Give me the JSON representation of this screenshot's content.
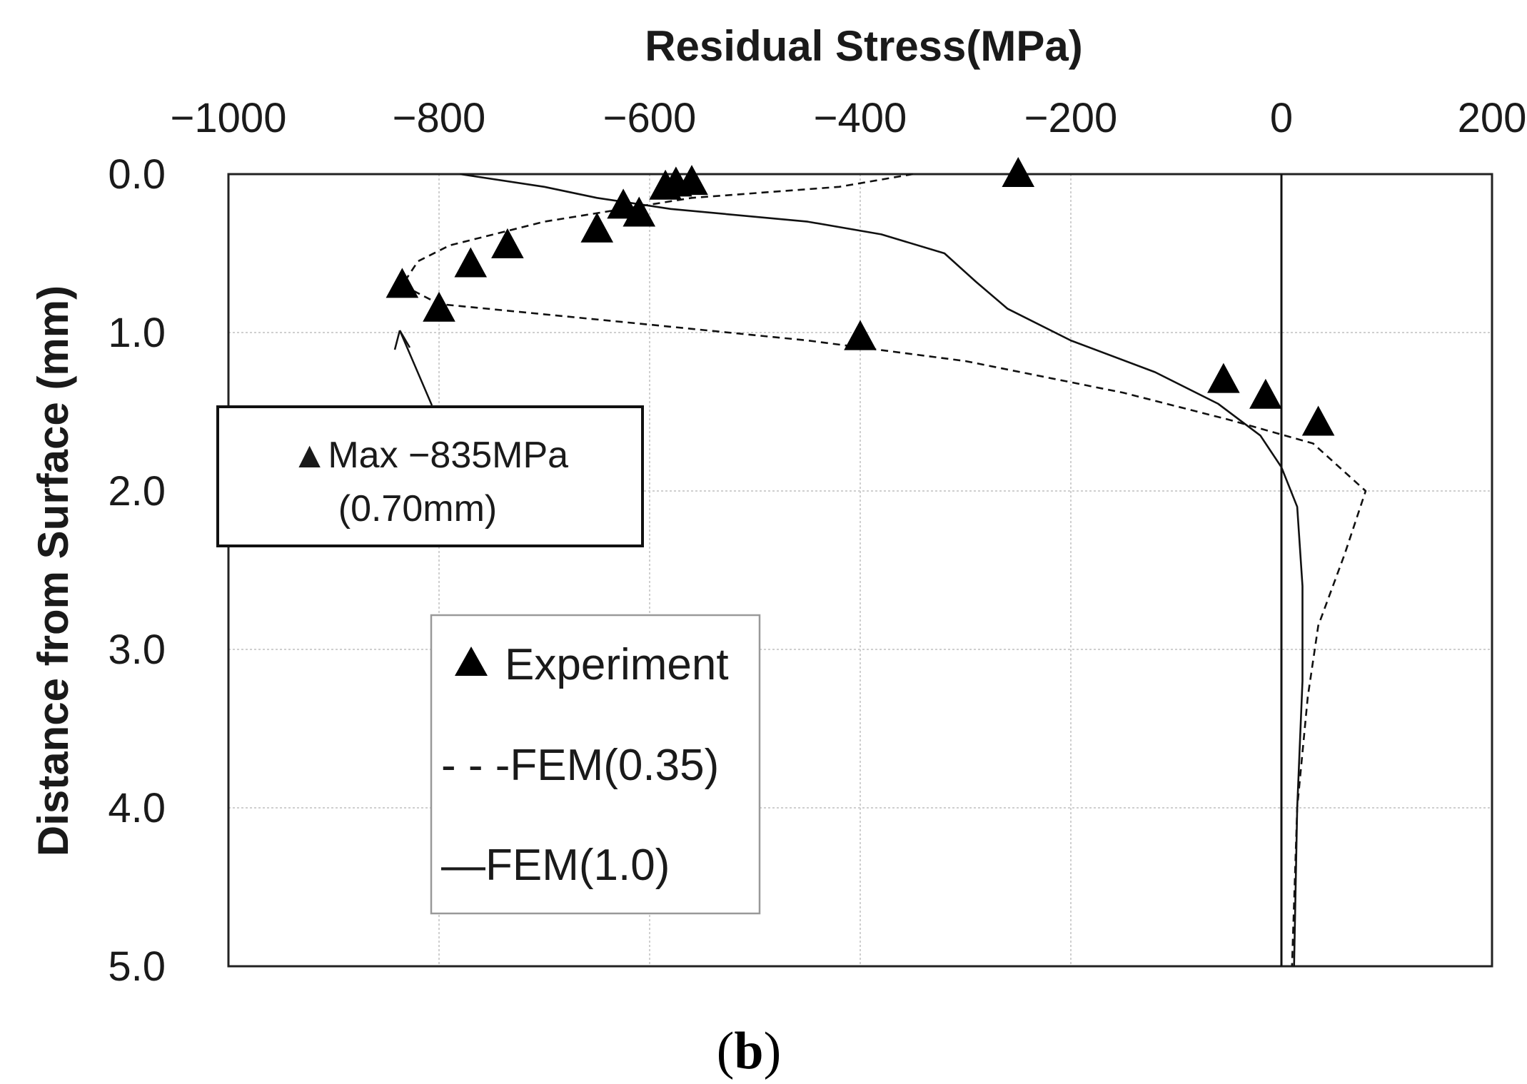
{
  "chart_data": {
    "type": "scatter+line",
    "title": "",
    "xlabel": "Residual Stress(MPa)",
    "ylabel": "Distance from Surface (mm)",
    "xlim": [
      -1000,
      200
    ],
    "ylim": [
      0,
      5
    ],
    "y_inverted": true,
    "x_axis_position": "top",
    "xticks": [
      -1000,
      -800,
      -600,
      -400,
      -200,
      0,
      200
    ],
    "xtick_labels": [
      "−1000",
      "−800",
      "−600",
      "−400",
      "−200",
      "0",
      "200"
    ],
    "yticks": [
      0,
      1,
      2,
      3,
      4,
      5
    ],
    "ytick_labels": [
      "0.0",
      "1.0",
      "2.0",
      "3.0",
      "4.0",
      "5.0"
    ],
    "grid": true,
    "reference_line_x": 0,
    "series": [
      {
        "name": "Experiment",
        "legend_label": "Experiment",
        "kind": "scatter",
        "marker": "triangle",
        "points": [
          {
            "x": -250,
            "y": 0.0
          },
          {
            "x": -585,
            "y": 0.08
          },
          {
            "x": -575,
            "y": 0.06
          },
          {
            "x": -560,
            "y": 0.05
          },
          {
            "x": -625,
            "y": 0.2
          },
          {
            "x": -610,
            "y": 0.25
          },
          {
            "x": -650,
            "y": 0.35
          },
          {
            "x": -735,
            "y": 0.45
          },
          {
            "x": -770,
            "y": 0.57
          },
          {
            "x": -835,
            "y": 0.7
          },
          {
            "x": -800,
            "y": 0.85
          },
          {
            "x": -400,
            "y": 1.03
          },
          {
            "x": -55,
            "y": 1.3
          },
          {
            "x": -15,
            "y": 1.4
          },
          {
            "x": 35,
            "y": 1.57
          }
        ]
      },
      {
        "name": "FEM(0.35)",
        "legend_label": "- - -FEM(0.35)",
        "kind": "line",
        "dash": true,
        "points": [
          {
            "x": -350,
            "y": 0.0
          },
          {
            "x": -420,
            "y": 0.08
          },
          {
            "x": -560,
            "y": 0.15
          },
          {
            "x": -700,
            "y": 0.3
          },
          {
            "x": -790,
            "y": 0.45
          },
          {
            "x": -820,
            "y": 0.55
          },
          {
            "x": -835,
            "y": 0.7
          },
          {
            "x": -800,
            "y": 0.82
          },
          {
            "x": -600,
            "y": 0.95
          },
          {
            "x": -450,
            "y": 1.05
          },
          {
            "x": -300,
            "y": 1.18
          },
          {
            "x": -150,
            "y": 1.38
          },
          {
            "x": -50,
            "y": 1.55
          },
          {
            "x": 30,
            "y": 1.7
          },
          {
            "x": 80,
            "y": 2.0
          },
          {
            "x": 60,
            "y": 2.4
          },
          {
            "x": 35,
            "y": 2.85
          },
          {
            "x": 25,
            "y": 3.3
          },
          {
            "x": 15,
            "y": 4.0
          },
          {
            "x": 10,
            "y": 5.0
          }
        ]
      },
      {
        "name": "FEM(1.0)",
        "legend_label": "—FEM(1.0)",
        "kind": "line",
        "dash": false,
        "points": [
          {
            "x": -780,
            "y": 0.0
          },
          {
            "x": -700,
            "y": 0.08
          },
          {
            "x": -650,
            "y": 0.15
          },
          {
            "x": -580,
            "y": 0.22
          },
          {
            "x": -450,
            "y": 0.3
          },
          {
            "x": -380,
            "y": 0.38
          },
          {
            "x": -320,
            "y": 0.5
          },
          {
            "x": -290,
            "y": 0.68
          },
          {
            "x": -260,
            "y": 0.85
          },
          {
            "x": -200,
            "y": 1.05
          },
          {
            "x": -120,
            "y": 1.25
          },
          {
            "x": -60,
            "y": 1.45
          },
          {
            "x": -20,
            "y": 1.65
          },
          {
            "x": 0,
            "y": 1.85
          },
          {
            "x": 15,
            "y": 2.1
          },
          {
            "x": 20,
            "y": 2.6
          },
          {
            "x": 20,
            "y": 3.2
          },
          {
            "x": 15,
            "y": 4.0
          },
          {
            "x": 12,
            "y": 5.0
          }
        ]
      }
    ],
    "annotation": {
      "line1_marker": "▲",
      "line1": "Max −835MPa",
      "line2": "(0.70mm)",
      "target": {
        "x": -835,
        "y": 1.0
      }
    },
    "legend_location": "center-left"
  },
  "caption": {
    "open": "(",
    "letter": "b",
    "close": ")"
  }
}
